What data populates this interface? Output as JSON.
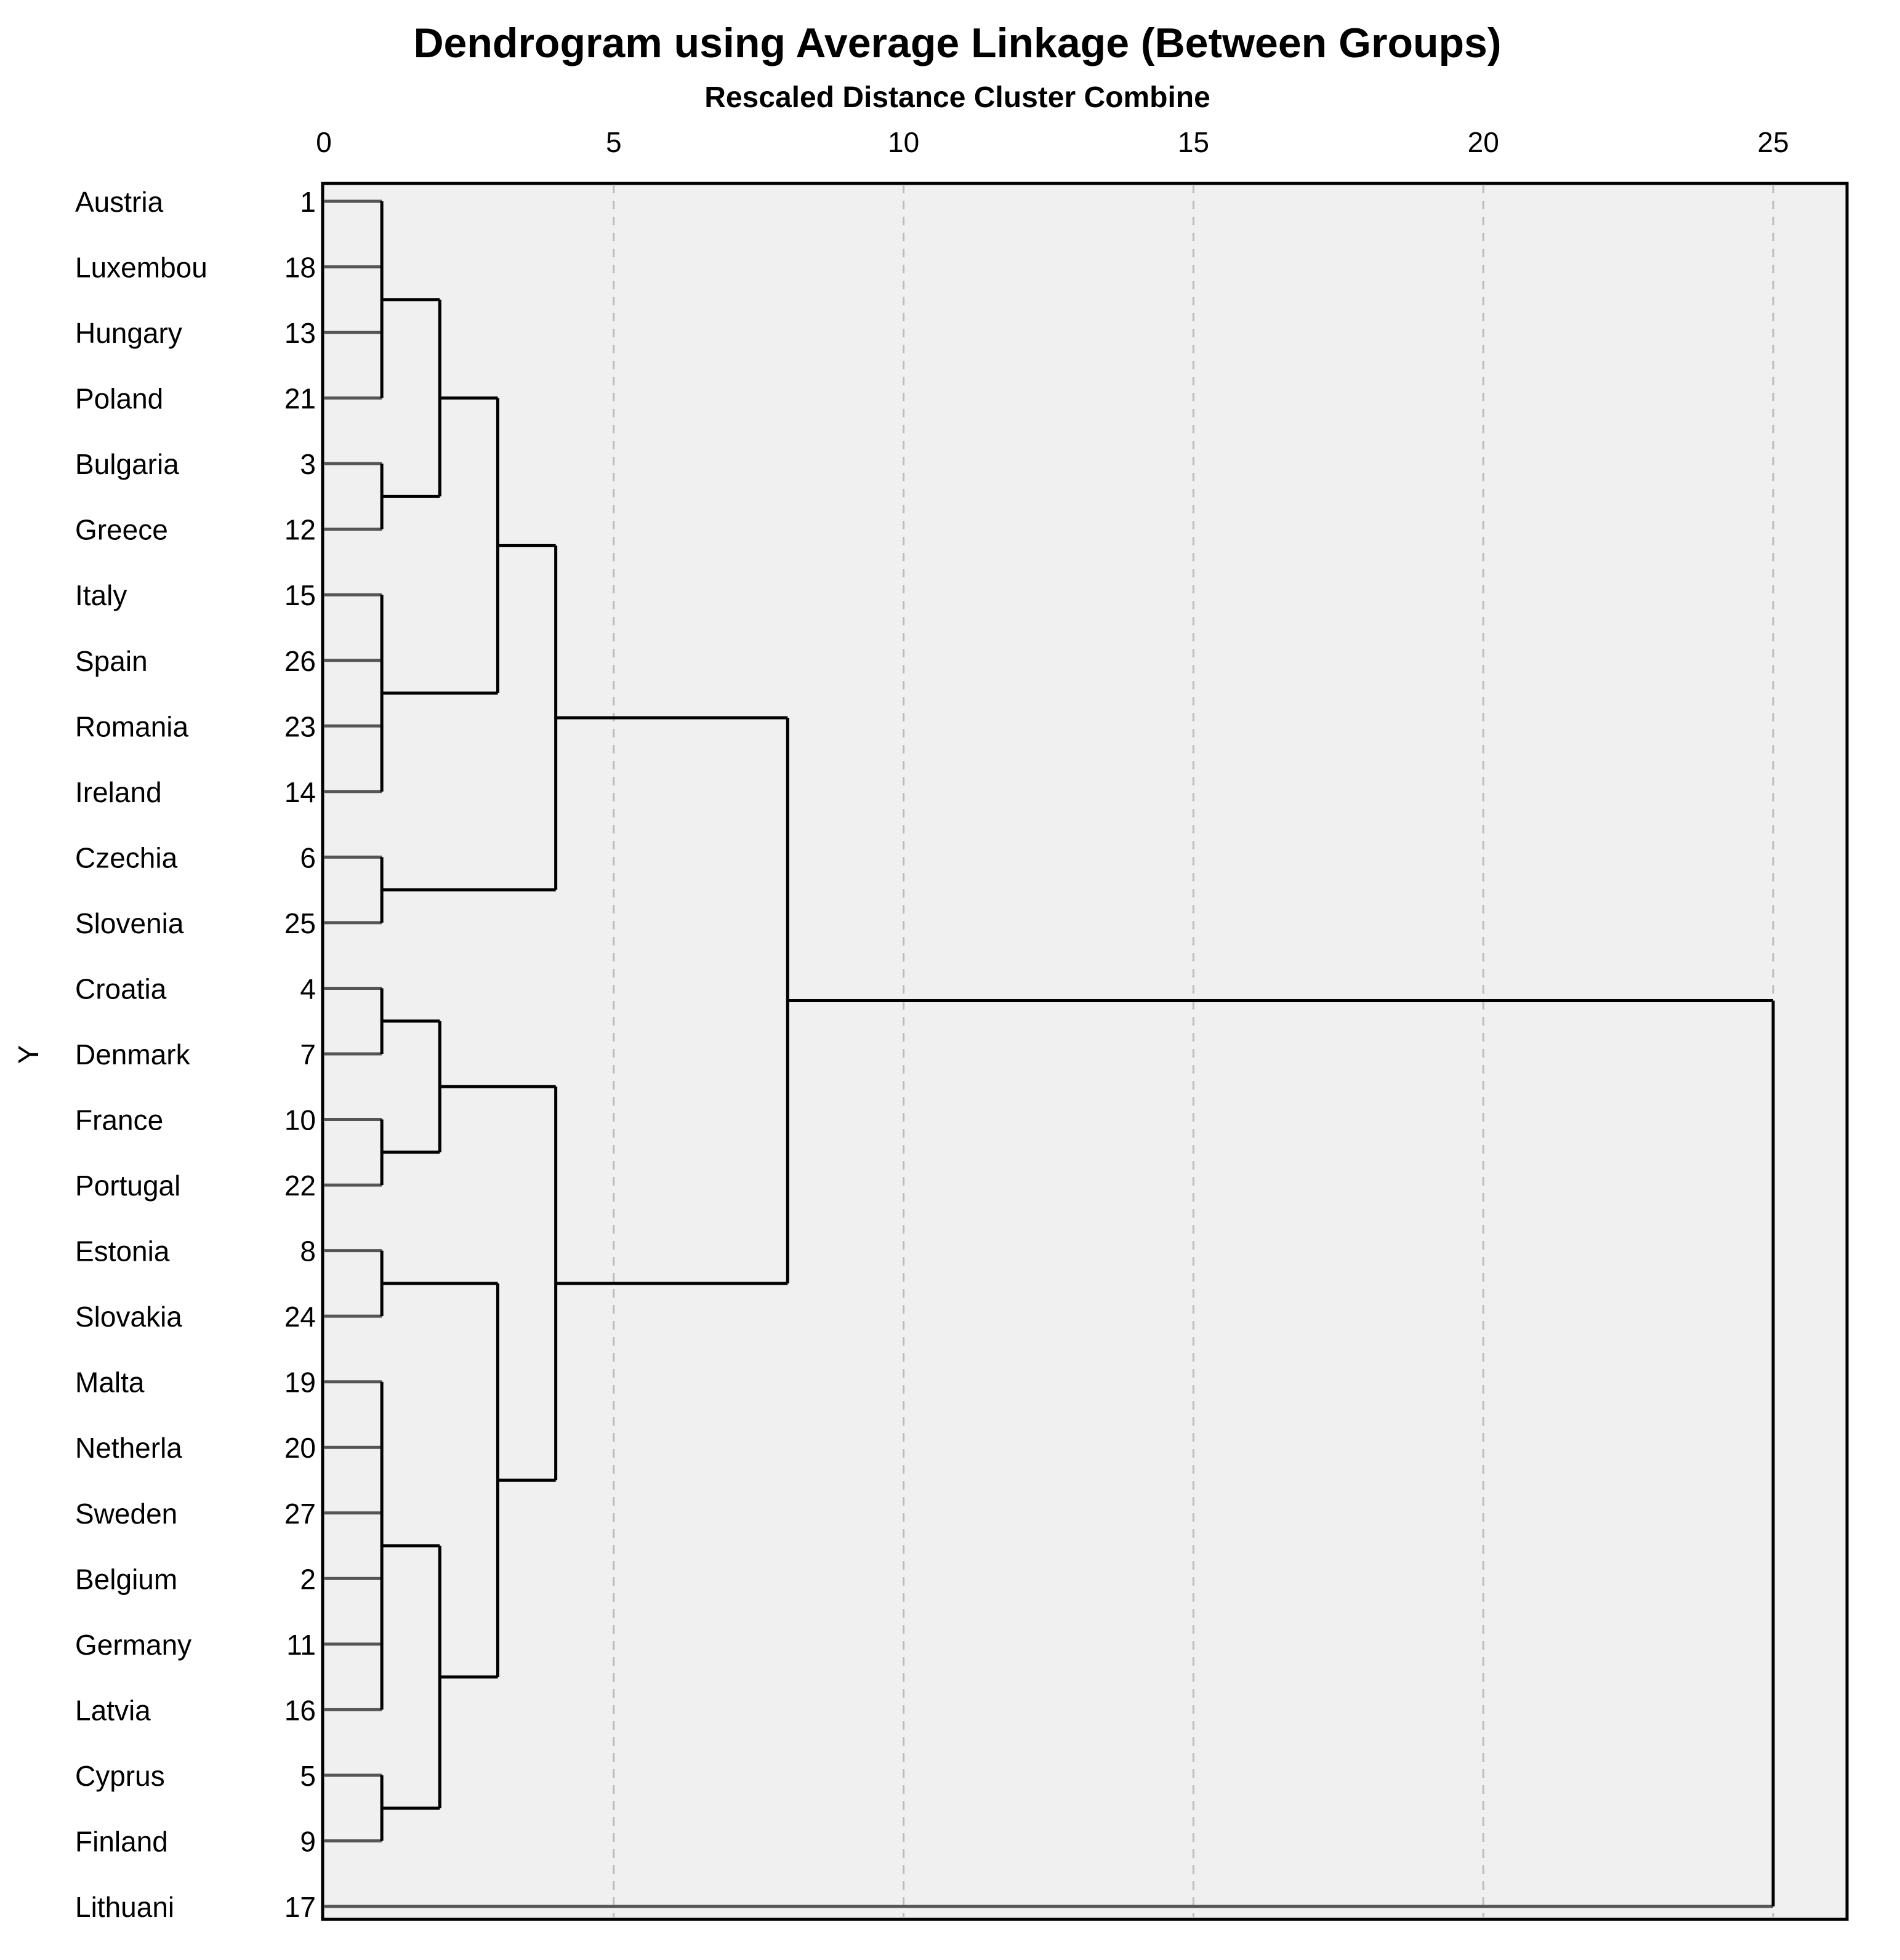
{
  "chart_data": {
    "type": "dendrogram",
    "title": "Dendrogram using Average Linkage (Between Groups)",
    "subtitle": "Rescaled Distance Cluster Combine",
    "ylabel": "Y",
    "xlim": [
      0,
      25
    ],
    "x_ticks": [
      0,
      5,
      10,
      15,
      20,
      25
    ],
    "grid": true,
    "leaves": [
      {
        "name": "Austria",
        "id": "1"
      },
      {
        "name": "Luxembou",
        "id": "18"
      },
      {
        "name": "Hungary",
        "id": "13"
      },
      {
        "name": "Poland",
        "id": "21"
      },
      {
        "name": "Bulgaria",
        "id": "3"
      },
      {
        "name": "Greece",
        "id": "12"
      },
      {
        "name": "Italy",
        "id": "15"
      },
      {
        "name": "Spain",
        "id": "26"
      },
      {
        "name": "Romania",
        "id": "23"
      },
      {
        "name": "Ireland",
        "id": "14"
      },
      {
        "name": "Czechia",
        "id": "6"
      },
      {
        "name": "Slovenia",
        "id": "25"
      },
      {
        "name": "Croatia",
        "id": "4"
      },
      {
        "name": "Denmark",
        "id": "7"
      },
      {
        "name": "France",
        "id": "10"
      },
      {
        "name": "Portugal",
        "id": "22"
      },
      {
        "name": "Estonia",
        "id": "8"
      },
      {
        "name": "Slovakia",
        "id": "24"
      },
      {
        "name": "Malta",
        "id": "19"
      },
      {
        "name": "Netherla",
        "id": "20"
      },
      {
        "name": "Sweden",
        "id": "27"
      },
      {
        "name": "Belgium",
        "id": "2"
      },
      {
        "name": "Germany",
        "id": "11"
      },
      {
        "name": "Latvia",
        "id": "16"
      },
      {
        "name": "Cyprus",
        "id": "5"
      },
      {
        "name": "Finland",
        "id": "9"
      },
      {
        "name": "Lithuani",
        "id": "17"
      }
    ],
    "merges": [
      {
        "id": "A",
        "children": [
          0,
          1,
          2,
          3
        ],
        "distance": 1
      },
      {
        "id": "B",
        "children": [
          4,
          5
        ],
        "distance": 1
      },
      {
        "id": "C",
        "children": [
          "A",
          "B"
        ],
        "distance": 2
      },
      {
        "id": "D",
        "children": [
          6,
          7,
          8,
          9
        ],
        "distance": 1
      },
      {
        "id": "E",
        "children": [
          "C",
          "D"
        ],
        "distance": 3
      },
      {
        "id": "F",
        "children": [
          10,
          11
        ],
        "distance": 1
      },
      {
        "id": "G",
        "children": [
          "E",
          "F"
        ],
        "distance": 4
      },
      {
        "id": "H",
        "children": [
          12,
          13
        ],
        "distance": 1
      },
      {
        "id": "I",
        "children": [
          14,
          15
        ],
        "distance": 1
      },
      {
        "id": "J",
        "children": [
          "H",
          "I"
        ],
        "distance": 2
      },
      {
        "id": "K",
        "children": [
          16,
          17
        ],
        "distance": 1
      },
      {
        "id": "L",
        "children": [
          18,
          19,
          20,
          21,
          22,
          23
        ],
        "distance": 1
      },
      {
        "id": "M",
        "children": [
          24,
          25
        ],
        "distance": 1
      },
      {
        "id": "N",
        "children": [
          "L",
          "M"
        ],
        "distance": 2
      },
      {
        "id": "O",
        "children": [
          "K",
          "N"
        ],
        "distance": 3
      },
      {
        "id": "P",
        "children": [
          "J",
          "O"
        ],
        "distance": 4
      },
      {
        "id": "Q",
        "children": [
          "G",
          "P"
        ],
        "distance": 8
      },
      {
        "id": "R",
        "children": [
          "Q",
          26
        ],
        "distance": 25
      }
    ]
  }
}
